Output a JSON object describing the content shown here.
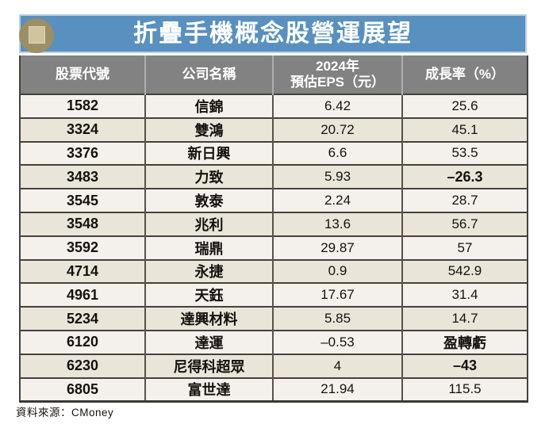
{
  "chart_data": {
    "type": "table",
    "title": "折疊手機概念股營運展望",
    "columns": [
      "股票代號",
      "公司名稱",
      "2024年預估EPS(元)",
      "成長率(%)"
    ],
    "rows": [
      [
        "1582",
        "信錦",
        "6.42",
        "25.6"
      ],
      [
        "3324",
        "雙鴻",
        "20.72",
        "45.1"
      ],
      [
        "3376",
        "新日興",
        "6.6",
        "53.5"
      ],
      [
        "3483",
        "力致",
        "5.93",
        "–26.3"
      ],
      [
        "3545",
        "敦泰",
        "2.24",
        "28.7"
      ],
      [
        "3548",
        "兆利",
        "13.6",
        "56.7"
      ],
      [
        "3592",
        "瑞鼎",
        "29.87",
        "57"
      ],
      [
        "4714",
        "永捷",
        "0.9",
        "542.9"
      ],
      [
        "4961",
        "天鈺",
        "17.67",
        "31.4"
      ],
      [
        "5234",
        "達興材料",
        "5.85",
        "14.7"
      ],
      [
        "6120",
        "達運",
        "–0.53",
        "盈轉虧"
      ],
      [
        "6230",
        "尼得科超眾",
        "4",
        "–43"
      ],
      [
        "6805",
        "富世達",
        "21.94",
        "115.5"
      ]
    ],
    "source": "資料來源：CMoney"
  },
  "header": {
    "title": "折疊手機概念股營運展望"
  },
  "table": {
    "columns": [
      {
        "label": "股票代號"
      },
      {
        "label": "公司名稱"
      },
      {
        "line1": "2024年",
        "line2": "預估EPS（元）"
      },
      {
        "label": "成長率（%）"
      }
    ],
    "rows": [
      {
        "code": "1582",
        "name": "信錦",
        "eps": "6.42",
        "growth": "25.6"
      },
      {
        "code": "3324",
        "name": "雙鴻",
        "eps": "20.72",
        "growth": "45.1"
      },
      {
        "code": "3376",
        "name": "新日興",
        "eps": "6.6",
        "growth": "53.5"
      },
      {
        "code": "3483",
        "name": "力致",
        "eps": "5.93",
        "growth": "–26.3"
      },
      {
        "code": "3545",
        "name": "敦泰",
        "eps": "2.24",
        "growth": "28.7"
      },
      {
        "code": "3548",
        "name": "兆利",
        "eps": "13.6",
        "growth": "56.7"
      },
      {
        "code": "3592",
        "name": "瑞鼎",
        "eps": "29.87",
        "growth": "57"
      },
      {
        "code": "4714",
        "name": "永捷",
        "eps": "0.9",
        "growth": "542.9"
      },
      {
        "code": "4961",
        "name": "天鈺",
        "eps": "17.67",
        "growth": "31.4"
      },
      {
        "code": "5234",
        "name": "達興材料",
        "eps": "5.85",
        "growth": "14.7"
      },
      {
        "code": "6120",
        "name": "達運",
        "eps": "–0.53",
        "growth": "盈轉虧"
      },
      {
        "code": "6230",
        "name": "尼得科超眾",
        "eps": "4",
        "growth": "–43"
      },
      {
        "code": "6805",
        "name": "富世達",
        "eps": "21.94",
        "growth": "115.5"
      }
    ]
  },
  "footer": {
    "source": "資料來源：CMoney"
  },
  "colors": {
    "title_bar_blue": "#5890bf",
    "title_bar_edge": "#b7d0e4",
    "badge_circle_tan": "#9c8e66",
    "badge_square_beige": "#cfc49e",
    "header_row_gray": "#828282",
    "row_light": "#f4f1ec",
    "row_dark": "#e9e5d9",
    "grid_border_dark": "#45413b"
  }
}
